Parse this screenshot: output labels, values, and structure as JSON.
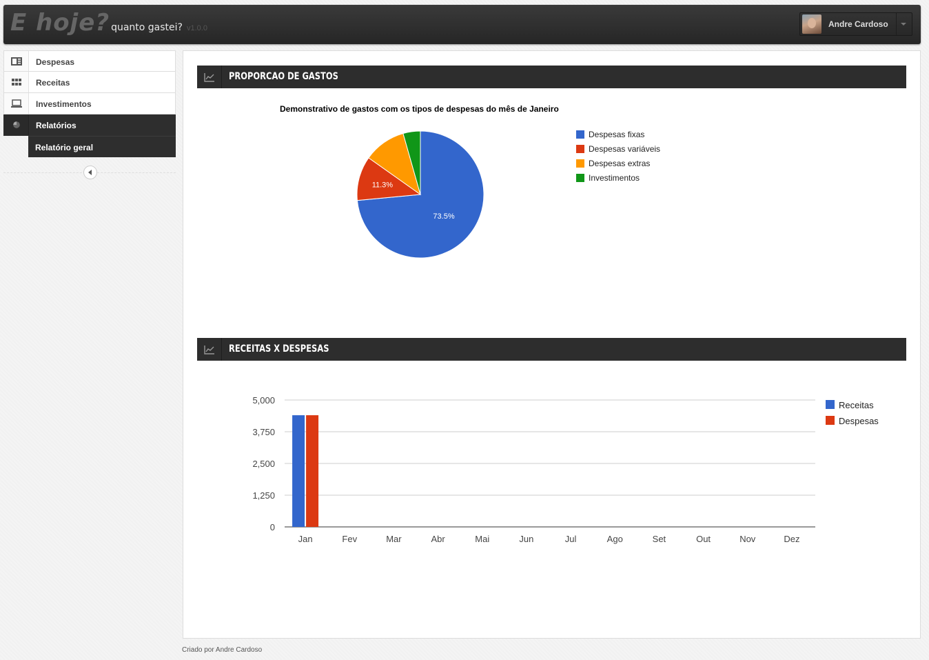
{
  "header": {
    "brand_main": "E hoje?",
    "brand_sub": "quanto gastei?",
    "version": "v1.0.0",
    "user_name": "Andre Cardoso"
  },
  "sidebar": {
    "items": [
      {
        "label": "Despesas",
        "icon": "newspaper-icon"
      },
      {
        "label": "Receitas",
        "icon": "grid-icon"
      },
      {
        "label": "Investimentos",
        "icon": "laptop-icon"
      },
      {
        "label": "Relatórios",
        "icon": "pie-chart-icon",
        "active": true
      }
    ],
    "subitems": [
      {
        "label": "Relatório geral"
      }
    ]
  },
  "widgets": {
    "pie": {
      "title": "Proporcao de gastos"
    },
    "bar": {
      "title": "Receitas x Despesas"
    }
  },
  "chart_data": [
    {
      "type": "pie",
      "title": "Demonstrativo de gastos com os tipos de despesas do mês de Janeiro",
      "categories": [
        "Despesas fixas",
        "Despesas variáveis",
        "Despesas extras",
        "Investimentos"
      ],
      "values": [
        73.5,
        11.3,
        10.8,
        4.4
      ],
      "slice_labels": [
        "73.5%",
        "11.3%",
        "",
        ""
      ],
      "colors": [
        "#3366cc",
        "#dc3912",
        "#ff9900",
        "#109618"
      ],
      "legend": "right"
    },
    {
      "type": "bar",
      "categories": [
        "Jan",
        "Fev",
        "Mar",
        "Abr",
        "Mai",
        "Jun",
        "Jul",
        "Ago",
        "Set",
        "Out",
        "Nov",
        "Dez"
      ],
      "series": [
        {
          "name": "Receitas",
          "values": [
            4400,
            0,
            0,
            0,
            0,
            0,
            0,
            0,
            0,
            0,
            0,
            0
          ],
          "color": "#3366cc"
        },
        {
          "name": "Despesas",
          "values": [
            4400,
            0,
            0,
            0,
            0,
            0,
            0,
            0,
            0,
            0,
            0,
            0
          ],
          "color": "#dc3912"
        }
      ],
      "yticks": [
        "0",
        "1,250",
        "2,500",
        "3,750",
        "5,000"
      ],
      "ylim": [
        0,
        5000
      ],
      "grid": true,
      "legend": "right"
    }
  ],
  "footer": {
    "text": "Criado por Andre Cardoso"
  }
}
